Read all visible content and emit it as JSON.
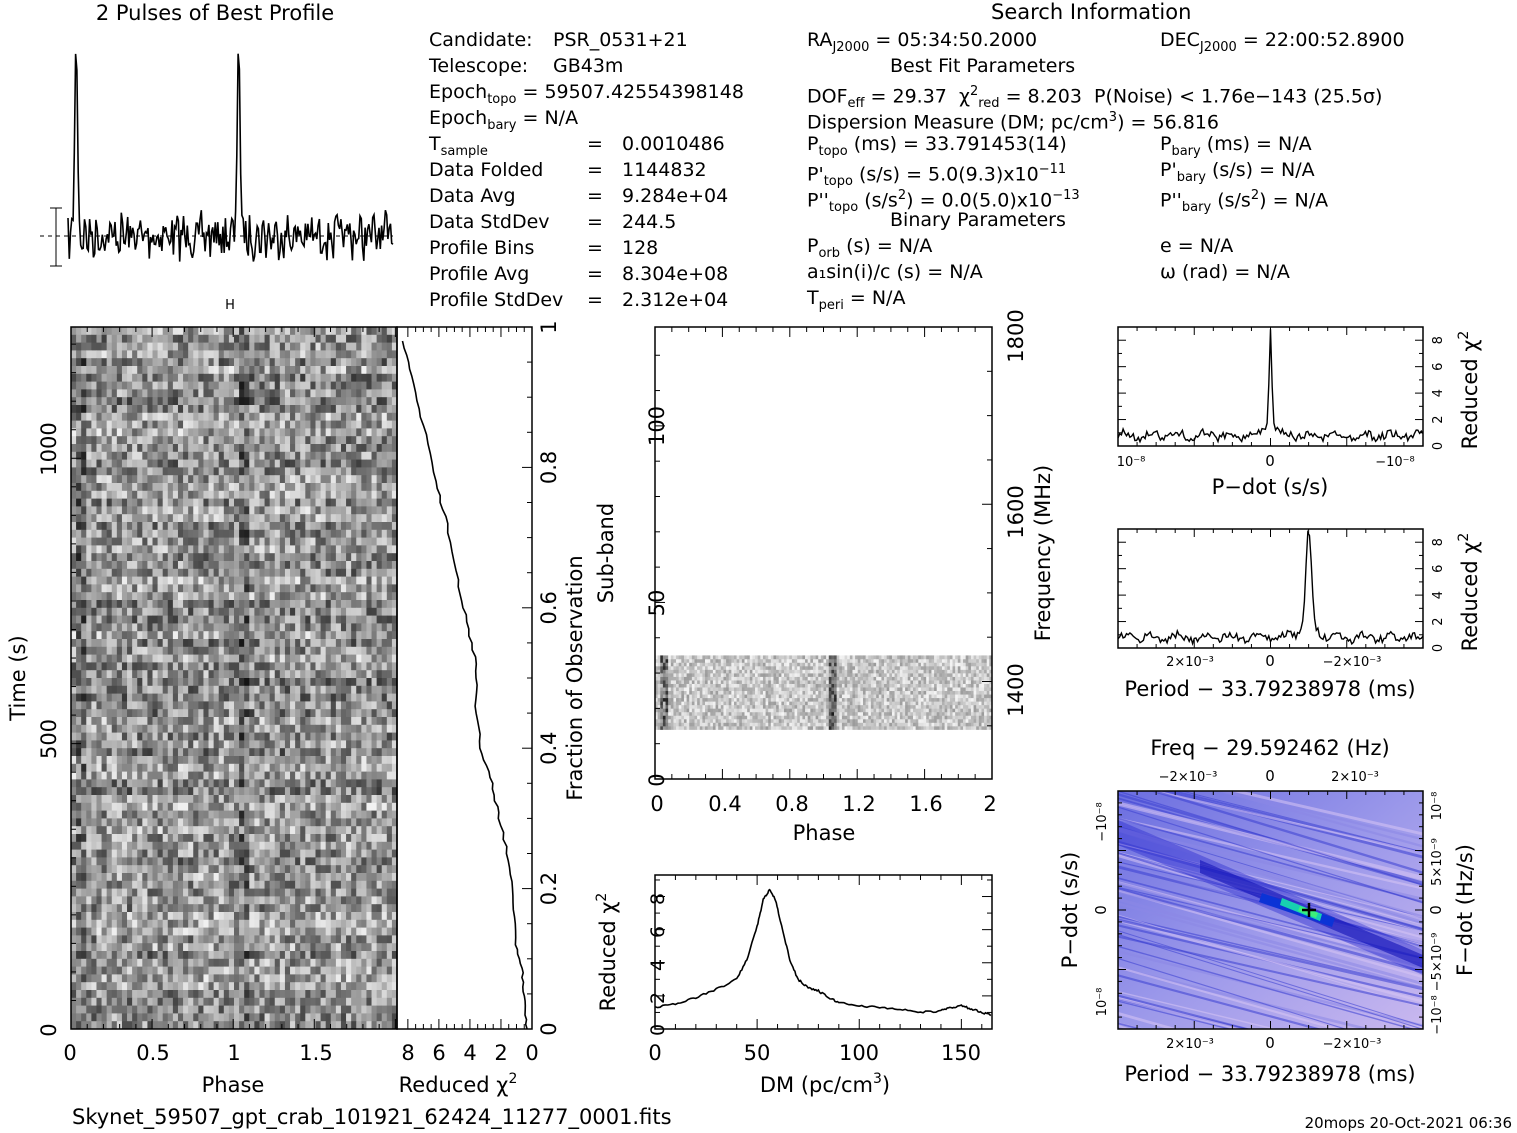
{
  "titles": {
    "profile": "2 Pulses of Best Profile",
    "search": "Search Information",
    "best_fit": "Best Fit Parameters",
    "binary": "Binary Parameters"
  },
  "filename": "Skynet_59507_gpt_crab_101921_62424_11277_0001.fits",
  "footer": "20mops  20-Oct-2021 06:36",
  "candidate_info": [
    [
      "Candidate:",
      "PSR_0531+21"
    ],
    [
      "Telescope:",
      "GB43m"
    ]
  ],
  "epoch_topo": "= 59507.42554398148",
  "epoch_bary": "= N/A",
  "stats": [
    {
      "label": "T",
      "sub": "sample",
      "value": "0.0010486"
    },
    {
      "label": "Data Folded",
      "value": "1144832"
    },
    {
      "label": "Data Avg",
      "value": "9.284e+04"
    },
    {
      "label": "Data StdDev",
      "value": "244.5"
    },
    {
      "label": "Profile Bins",
      "value": "128"
    },
    {
      "label": "Profile Avg",
      "value": "8.304e+08"
    },
    {
      "label": "Profile StdDev",
      "value": "2.312e+04"
    }
  ],
  "search": {
    "ra": "= 05:34:50.2000",
    "dec": "= 22:00:52.8900",
    "dof": "= 29.37",
    "chi2_red": "= 8.203",
    "pnoise": "P(Noise) < 1.76e−143  (25.5σ)",
    "dm_line": "Dispersion Measure (DM; pc/cm",
    "dm_val": ") = 56.816",
    "p_topo": "(ms) =  33.791453(14)",
    "pd_topo": "(s/s) =  5.0(9.3)x10",
    "pd_topo_exp": "−11",
    "pdd_topo": "(s/s",
    "pdd_topo_tail": ") = 0.0(5.0)x10",
    "pdd_topo_exp": "−13",
    "p_bary": "(ms) = N/A",
    "pd_bary": "(s/s) = N/A",
    "pdd_bary": "(s/s",
    "pdd_bary_tail": ") = N/A",
    "porb": "(s) = N/A",
    "a1": "a₁sin(i)/c (s) = N/A",
    "tperi": "= N/A",
    "ecc": "e = N/A",
    "omega": "ω (rad) = N/A"
  },
  "axes": {
    "phase": "Phase",
    "time": "Time (s)",
    "reduced_chi2": "Reduced χ",
    "fraction": "Fraction of Observation",
    "subband": "Sub-band",
    "frequency": "Frequency (MHz)",
    "dm": "DM (pc/cm",
    "pdot": "P−dot (s/s)",
    "period": "Period − 33.79238978 (ms)",
    "freq_top": "Freq − 29.592462 (Hz)",
    "fdot": "F−dot (Hz/s)"
  },
  "chart_data": [
    {
      "type": "line",
      "name": "profile",
      "title": "2 Pulses of Best Profile",
      "x_label": "",
      "peaks_phase": [
        0.05,
        1.05
      ],
      "noise_level": 0.15
    },
    {
      "type": "heatmap",
      "name": "time-phase",
      "xlabel": "Phase",
      "ylabel": "Time (s)",
      "xlim": [
        0,
        2
      ],
      "ylim": [
        0,
        1230
      ],
      "xticks": [
        0,
        0.5,
        1,
        1.5
      ],
      "yticks": [
        0,
        500,
        1000
      ],
      "pulse_phase": [
        0.05,
        1.05
      ]
    },
    {
      "type": "line",
      "name": "reduced-chi2-vs-time",
      "xlabel": "Reduced χ²",
      "ylabel": "Fraction of Observation",
      "xlim": [
        8.7,
        0
      ],
      "ylim": [
        0,
        1
      ],
      "xticks": [
        8,
        6,
        4,
        2,
        0
      ],
      "yticks": [
        0,
        0.2,
        0.4,
        0.6,
        0.8,
        1
      ],
      "x": [
        0.35,
        0.5,
        0.6,
        1.0,
        1.2,
        1.5,
        2.1,
        2.6,
        3.3,
        3.6,
        3.6,
        4.2,
        4.8,
        5.5,
        6.2,
        7.0,
        7.8,
        8.4
      ],
      "y": [
        0.0,
        0.04,
        0.08,
        0.12,
        0.18,
        0.24,
        0.3,
        0.35,
        0.4,
        0.46,
        0.52,
        0.58,
        0.64,
        0.72,
        0.78,
        0.86,
        0.93,
        0.99
      ]
    },
    {
      "type": "heatmap",
      "name": "subband-phase",
      "xlabel": "Phase",
      "ylabel": "Sub-band",
      "y2label": "Frequency (MHz)",
      "xlim": [
        0,
        2
      ],
      "ylim": [
        0,
        128
      ],
      "xticks": [
        0,
        0.4,
        0.8,
        1.2,
        1.6,
        2
      ],
      "yticks": [
        0,
        50,
        100
      ],
      "freq_ticks": [
        1400,
        1600,
        1800
      ],
      "filled_subbands": [
        14,
        35
      ],
      "pulse_phase": [
        0.05,
        1.05
      ]
    },
    {
      "type": "line",
      "name": "dm-curve",
      "xlabel": "DM (pc/cm³)",
      "ylabel": "Reduced χ²",
      "xlim": [
        0,
        165
      ],
      "ylim": [
        0,
        9
      ],
      "xticks": [
        0,
        50,
        100,
        150
      ],
      "yticks": [
        0,
        2,
        4,
        6,
        8
      ],
      "x": [
        0,
        10,
        20,
        30,
        40,
        45,
        50,
        53,
        56,
        59,
        62,
        66,
        70,
        75,
        80,
        85,
        90,
        100,
        110,
        120,
        130,
        140,
        145,
        150,
        155,
        160,
        165
      ],
      "y": [
        1.3,
        1.5,
        1.9,
        2.4,
        3.0,
        4.2,
        6.2,
        7.8,
        8.4,
        7.8,
        6.2,
        4.2,
        3.0,
        2.5,
        2.3,
        1.9,
        1.6,
        1.4,
        1.3,
        1.2,
        1.0,
        1.1,
        1.3,
        1.4,
        1.2,
        1.0,
        0.8
      ]
    },
    {
      "type": "line",
      "name": "pdot-curve",
      "xlabel": "P−dot (s/s)",
      "ylabel": "Reduced χ²",
      "xlim": [
        1.2e-08,
        -1.2e-08
      ],
      "ylim": [
        0,
        9
      ],
      "yticks": [
        0,
        2,
        4,
        6,
        8
      ],
      "peak_x": 0,
      "peak_y": 8.2
    },
    {
      "type": "line",
      "name": "period-curve",
      "xlabel": "Period − 33.79238978 (ms)",
      "ylabel": "Reduced χ²",
      "xlim": [
        0.0036,
        -0.0036
      ],
      "ylim": [
        0,
        9
      ],
      "yticks": [
        0,
        2,
        4,
        6,
        8
      ],
      "peak_x": -0.0009,
      "peak_y": 8.2
    },
    {
      "type": "heatmap",
      "name": "p-pdot-plane",
      "xlabel": "Period − 33.79238978 (ms)",
      "ylabel": "P−dot (s/s)",
      "top_label": "Freq − 29.592462 (Hz)",
      "right_label": "F−dot (Hz/s)",
      "best_x": -0.0009,
      "best_y": 0
    }
  ],
  "tick_text": {
    "pdot_x": [
      "10⁻⁸",
      "0",
      "−10⁻⁸"
    ],
    "period_x": [
      "2×10⁻³",
      "0",
      "−2×10⁻³"
    ],
    "freq_top": [
      "−2×10⁻³",
      "0",
      "2×10⁻³"
    ],
    "pdot_y": [
      "−10⁻⁸",
      "0",
      "10⁻⁸"
    ],
    "fdot_y": [
      "10⁻⁸",
      "5×10⁻⁹",
      "0",
      "−5×10⁻⁹",
      "−10⁻⁸"
    ]
  }
}
